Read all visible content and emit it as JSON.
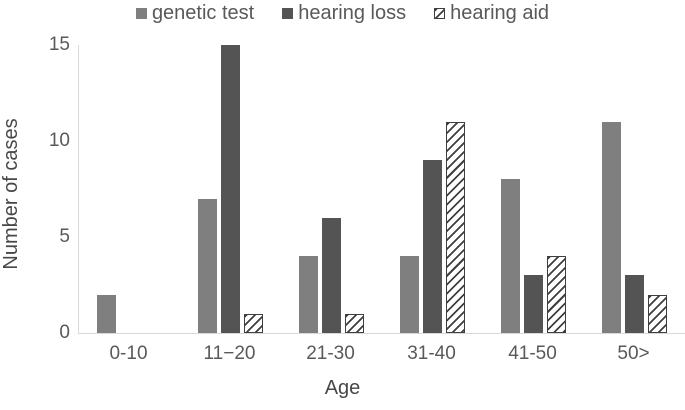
{
  "chart_data": {
    "type": "bar",
    "categories": [
      "0-10",
      "11−20",
      "21-30",
      "31-40",
      "41-50",
      "50>"
    ],
    "series": [
      {
        "name": "genetic test",
        "values": [
          2,
          7,
          4,
          4,
          8,
          11
        ],
        "color": "#7f7f7f",
        "hatch": false
      },
      {
        "name": "hearing loss",
        "values": [
          0,
          15,
          6,
          9,
          3,
          3
        ],
        "color": "#545454",
        "hatch": false
      },
      {
        "name": "hearing aid",
        "values": [
          0,
          1,
          1,
          11,
          4,
          2
        ],
        "color": "#ffffff",
        "hatch": true
      }
    ],
    "title": "",
    "xlabel": "Age",
    "ylabel": "Number of cases",
    "yticks": [
      0,
      5,
      10,
      15
    ],
    "ylim": [
      0,
      15
    ],
    "grid": false,
    "legend_position": "top"
  },
  "colors": {
    "text": "#595959",
    "axis_title_text": "#474747",
    "axis_line": "#d9d9d9",
    "hatch_stroke": "#3f3f3f"
  }
}
